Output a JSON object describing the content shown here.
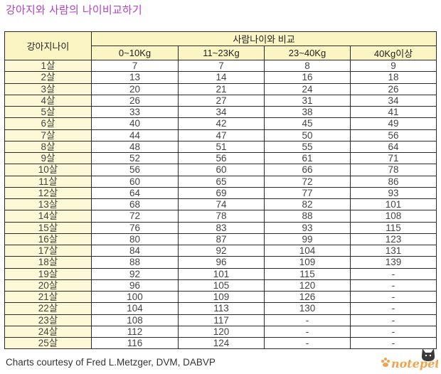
{
  "title": "강아지와 사람의 나이비교하기",
  "table": {
    "row_header": "강아지나이",
    "group_header": "사람나이와 비교",
    "columns": [
      "0~10Kg",
      "11~23Kg",
      "23~40Kg",
      "40Kg이상"
    ],
    "rows": [
      {
        "age": "1살",
        "v": [
          "7",
          "7",
          "8",
          "9"
        ]
      },
      {
        "age": "2살",
        "v": [
          "13",
          "14",
          "16",
          "18"
        ]
      },
      {
        "age": "3살",
        "v": [
          "20",
          "21",
          "24",
          "26"
        ]
      },
      {
        "age": "4살",
        "v": [
          "26",
          "27",
          "31",
          "34"
        ]
      },
      {
        "age": "5살",
        "v": [
          "33",
          "34",
          "38",
          "41"
        ]
      },
      {
        "age": "6살",
        "v": [
          "40",
          "42",
          "45",
          "49"
        ]
      },
      {
        "age": "7살",
        "v": [
          "44",
          "47",
          "50",
          "56"
        ]
      },
      {
        "age": "8살",
        "v": [
          "48",
          "51",
          "55",
          "64"
        ]
      },
      {
        "age": "9살",
        "v": [
          "52",
          "56",
          "61",
          "71"
        ]
      },
      {
        "age": "10살",
        "v": [
          "56",
          "60",
          "66",
          "78"
        ]
      },
      {
        "age": "11살",
        "v": [
          "60",
          "65",
          "72",
          "86"
        ]
      },
      {
        "age": "12살",
        "v": [
          "64",
          "69",
          "77",
          "93"
        ]
      },
      {
        "age": "13살",
        "v": [
          "68",
          "74",
          "82",
          "101"
        ]
      },
      {
        "age": "14살",
        "v": [
          "72",
          "78",
          "88",
          "108"
        ]
      },
      {
        "age": "15살",
        "v": [
          "76",
          "83",
          "93",
          "115"
        ]
      },
      {
        "age": "16살",
        "v": [
          "80",
          "87",
          "99",
          "123"
        ]
      },
      {
        "age": "17살",
        "v": [
          "84",
          "92",
          "104",
          "131"
        ]
      },
      {
        "age": "18살",
        "v": [
          "88",
          "96",
          "109",
          "139"
        ]
      },
      {
        "age": "19살",
        "v": [
          "92",
          "101",
          "115",
          "-"
        ]
      },
      {
        "age": "20살",
        "v": [
          "96",
          "105",
          "120",
          "-"
        ]
      },
      {
        "age": "21살",
        "v": [
          "100",
          "109",
          "126",
          "-"
        ]
      },
      {
        "age": "22살",
        "v": [
          "104",
          "113",
          "130",
          "-"
        ]
      },
      {
        "age": "23살",
        "v": [
          "108",
          "117",
          "-",
          "-"
        ]
      },
      {
        "age": "24살",
        "v": [
          "112",
          "120",
          "-",
          "-"
        ]
      },
      {
        "age": "25살",
        "v": [
          "116",
          "124",
          "-",
          "-"
        ]
      }
    ]
  },
  "credit": "Charts courtesy of Fred L.Metzger, DVM, DABVP",
  "logo": {
    "text": "notepet",
    "icon": "cat-silhouette-icon",
    "color": "#f2a24a"
  },
  "colors": {
    "title": "#b13fc7",
    "header_bg": "#fbf4c3",
    "age_col_bg": "#fdf9d6"
  }
}
